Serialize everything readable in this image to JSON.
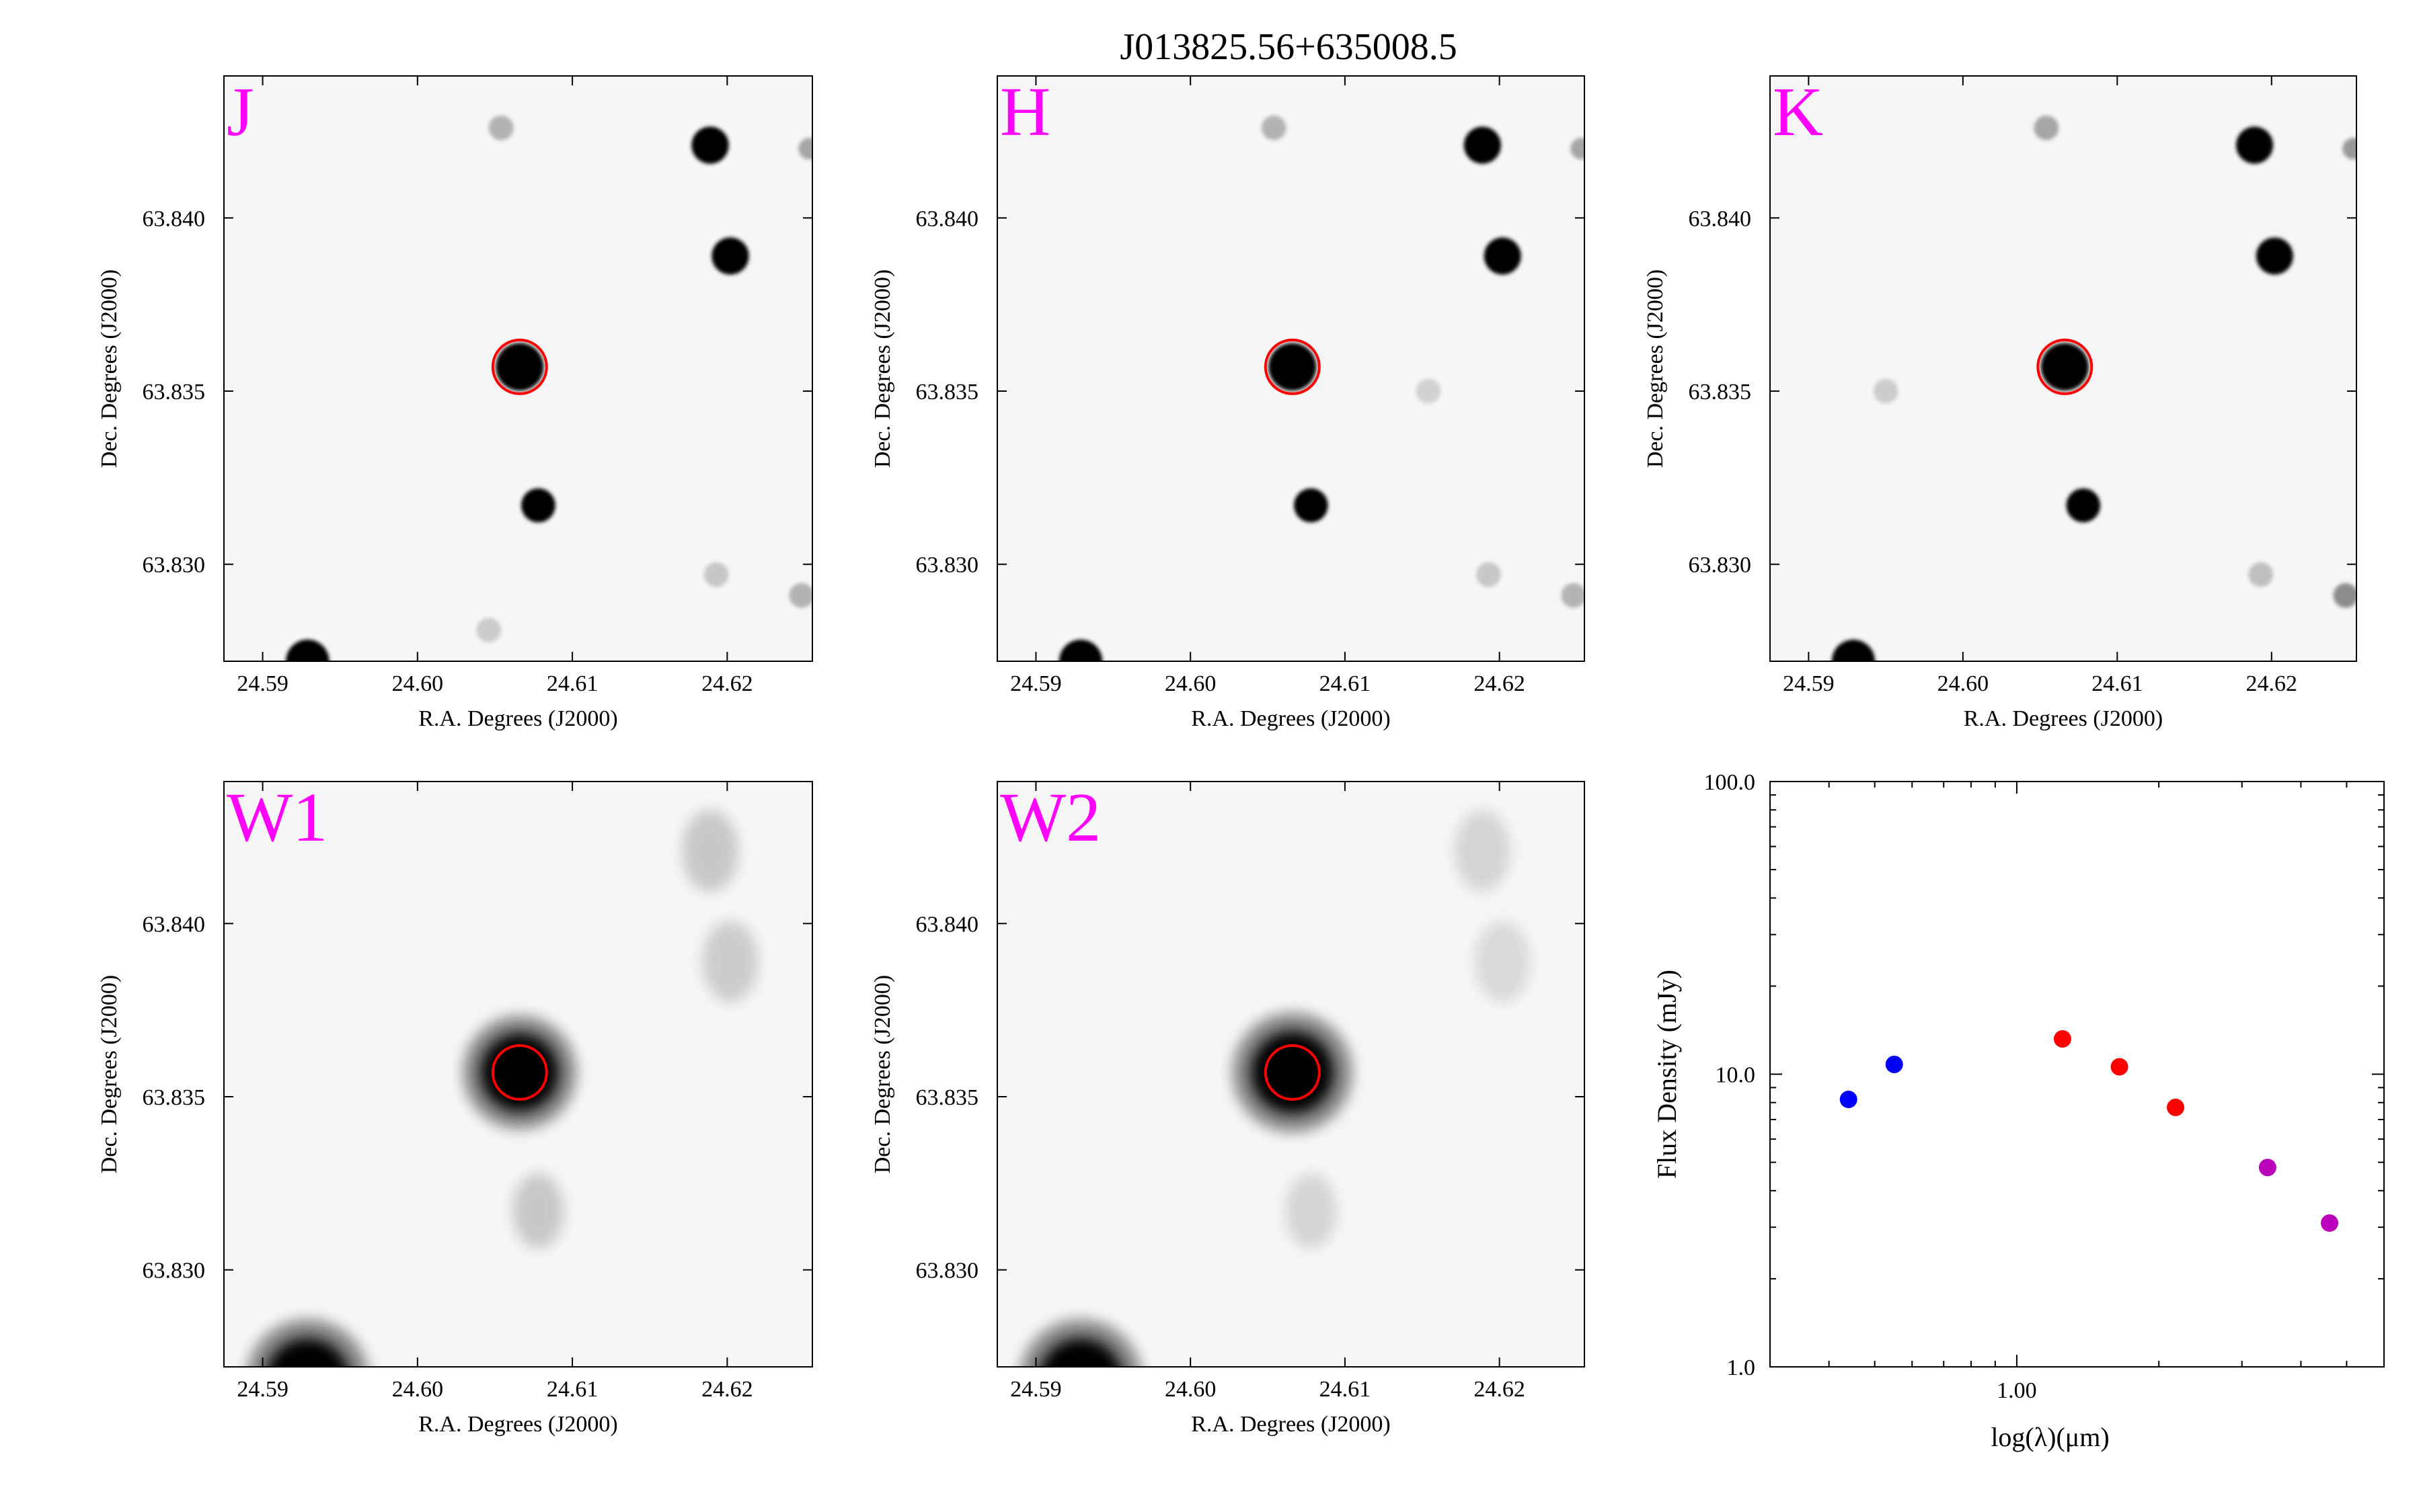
{
  "figure": {
    "title": "J013825.56+635008.5"
  },
  "chart_data": [
    {
      "type": "heatmap",
      "panel": "J",
      "label": "J",
      "xlabel": "R.A. Degrees (J2000)",
      "ylabel": "Dec. Degrees (J2000)",
      "xlim": [
        24.5875,
        24.6255
      ],
      "ylim": [
        63.8272,
        63.8441
      ],
      "xticks": [
        "24.59",
        "24.60",
        "24.61",
        "24.62"
      ],
      "yticks": [
        "63.830",
        "63.835",
        "63.840"
      ],
      "label_color": "#ff00ff",
      "target_marker": {
        "ra": 24.6066,
        "dec": 63.8357,
        "color": "#ff0000",
        "shape": "circle"
      },
      "sources": [
        {
          "ra": 24.6066,
          "dec": 63.8357,
          "r": 0.00155,
          "a": 1.0
        },
        {
          "ra": 24.6189,
          "dec": 63.8421,
          "r": 0.0012,
          "a": 1.0
        },
        {
          "ra": 24.6202,
          "dec": 63.8389,
          "r": 0.0012,
          "a": 1.0
        },
        {
          "ra": 24.6078,
          "dec": 63.8317,
          "r": 0.0011,
          "a": 1.0
        },
        {
          "ra": 24.5929,
          "dec": 63.8272,
          "r": 0.0014,
          "a": 1.0
        },
        {
          "ra": 24.6054,
          "dec": 63.8426,
          "r": 0.0008,
          "a": 0.3
        },
        {
          "ra": 24.6253,
          "dec": 63.842,
          "r": 0.0007,
          "a": 0.35
        },
        {
          "ra": 24.6193,
          "dec": 63.8297,
          "r": 0.0008,
          "a": 0.22
        },
        {
          "ra": 24.6248,
          "dec": 63.8291,
          "r": 0.0008,
          "a": 0.3
        },
        {
          "ra": 24.6046,
          "dec": 63.8281,
          "r": 0.0008,
          "a": 0.2
        }
      ]
    },
    {
      "type": "heatmap",
      "panel": "H",
      "label": "H",
      "xlabel": "R.A. Degrees (J2000)",
      "ylabel": "Dec. Degrees (J2000)",
      "xlim": [
        24.5875,
        24.6255
      ],
      "ylim": [
        63.8272,
        63.8441
      ],
      "xticks": [
        "24.59",
        "24.60",
        "24.61",
        "24.62"
      ],
      "yticks": [
        "63.830",
        "63.835",
        "63.840"
      ],
      "label_color": "#ff00ff",
      "target_marker": {
        "ra": 24.6066,
        "dec": 63.8357,
        "color": "#ff0000",
        "shape": "circle"
      },
      "sources": [
        {
          "ra": 24.6066,
          "dec": 63.8357,
          "r": 0.00155,
          "a": 1.0
        },
        {
          "ra": 24.6189,
          "dec": 63.8421,
          "r": 0.0012,
          "a": 1.0
        },
        {
          "ra": 24.6202,
          "dec": 63.8389,
          "r": 0.0012,
          "a": 1.0
        },
        {
          "ra": 24.6078,
          "dec": 63.8317,
          "r": 0.0011,
          "a": 1.0
        },
        {
          "ra": 24.5929,
          "dec": 63.8272,
          "r": 0.0014,
          "a": 1.0
        },
        {
          "ra": 24.6054,
          "dec": 63.8426,
          "r": 0.0008,
          "a": 0.3
        },
        {
          "ra": 24.6253,
          "dec": 63.842,
          "r": 0.0007,
          "a": 0.35
        },
        {
          "ra": 24.6193,
          "dec": 63.8297,
          "r": 0.0008,
          "a": 0.22
        },
        {
          "ra": 24.6248,
          "dec": 63.8291,
          "r": 0.0008,
          "a": 0.3
        },
        {
          "ra": 24.6154,
          "dec": 63.835,
          "r": 0.0008,
          "a": 0.18
        }
      ]
    },
    {
      "type": "heatmap",
      "panel": "K",
      "label": "K",
      "xlabel": "R.A. Degrees (J2000)",
      "ylabel": "Dec. Degrees (J2000)",
      "xlim": [
        24.5875,
        24.6255
      ],
      "ylim": [
        63.8272,
        63.8441
      ],
      "xticks": [
        "24.59",
        "24.60",
        "24.61",
        "24.62"
      ],
      "yticks": [
        "63.830",
        "63.835",
        "63.840"
      ],
      "label_color": "#ff00ff",
      "target_marker": {
        "ra": 24.6066,
        "dec": 63.8357,
        "color": "#ff0000",
        "shape": "circle"
      },
      "sources": [
        {
          "ra": 24.6066,
          "dec": 63.8357,
          "r": 0.00155,
          "a": 1.0
        },
        {
          "ra": 24.6189,
          "dec": 63.8421,
          "r": 0.0012,
          "a": 1.0
        },
        {
          "ra": 24.6202,
          "dec": 63.8389,
          "r": 0.0012,
          "a": 1.0
        },
        {
          "ra": 24.6078,
          "dec": 63.8317,
          "r": 0.0011,
          "a": 1.0
        },
        {
          "ra": 24.5929,
          "dec": 63.8272,
          "r": 0.0014,
          "a": 1.0
        },
        {
          "ra": 24.6054,
          "dec": 63.8426,
          "r": 0.0008,
          "a": 0.35
        },
        {
          "ra": 24.6253,
          "dec": 63.842,
          "r": 0.0007,
          "a": 0.4
        },
        {
          "ra": 24.6193,
          "dec": 63.8297,
          "r": 0.0008,
          "a": 0.25
        },
        {
          "ra": 24.6248,
          "dec": 63.8291,
          "r": 0.0008,
          "a": 0.45
        },
        {
          "ra": 24.595,
          "dec": 63.835,
          "r": 0.0008,
          "a": 0.2
        }
      ]
    },
    {
      "type": "heatmap",
      "panel": "W1",
      "label": "W1",
      "xlabel": "R.A. Degrees (J2000)",
      "ylabel": "Dec. Degrees (J2000)",
      "xlim": [
        24.5875,
        24.6255
      ],
      "ylim": [
        63.8272,
        63.8441
      ],
      "xticks": [
        "24.59",
        "24.60",
        "24.61",
        "24.62"
      ],
      "yticks": [
        "63.830",
        "63.835",
        "63.840"
      ],
      "label_color": "#ff00ff",
      "target_marker": {
        "ra": 24.6066,
        "dec": 63.8357,
        "color": "#ff0000",
        "shape": "circle"
      },
      "sources": [
        {
          "ra": 24.6066,
          "dec": 63.8357,
          "r": 0.0035,
          "a": 1.0
        },
        {
          "ra": 24.5929,
          "dec": 63.8268,
          "r": 0.0038,
          "a": 1.0
        },
        {
          "ra": 24.6189,
          "dec": 63.8421,
          "r": 0.0024,
          "a": 0.22
        },
        {
          "ra": 24.6202,
          "dec": 63.8389,
          "r": 0.0024,
          "a": 0.2
        },
        {
          "ra": 24.6078,
          "dec": 63.8317,
          "r": 0.0022,
          "a": 0.22
        }
      ]
    },
    {
      "type": "heatmap",
      "panel": "W2",
      "label": "W2",
      "xlabel": "R.A. Degrees (J2000)",
      "ylabel": "Dec. Degrees (J2000)",
      "xlim": [
        24.5875,
        24.6255
      ],
      "ylim": [
        63.8272,
        63.8441
      ],
      "xticks": [
        "24.59",
        "24.60",
        "24.61",
        "24.62"
      ],
      "yticks": [
        "63.830",
        "63.835",
        "63.840"
      ],
      "label_color": "#ff00ff",
      "target_marker": {
        "ra": 24.6066,
        "dec": 63.8357,
        "color": "#ff0000",
        "shape": "circle"
      },
      "sources": [
        {
          "ra": 24.6066,
          "dec": 63.8357,
          "r": 0.0037,
          "a": 1.0
        },
        {
          "ra": 24.5929,
          "dec": 63.8268,
          "r": 0.0038,
          "a": 1.0
        },
        {
          "ra": 24.6189,
          "dec": 63.8421,
          "r": 0.0024,
          "a": 0.17
        },
        {
          "ra": 24.6202,
          "dec": 63.8389,
          "r": 0.0024,
          "a": 0.15
        },
        {
          "ra": 24.6078,
          "dec": 63.8317,
          "r": 0.0022,
          "a": 0.17
        }
      ]
    },
    {
      "type": "scatter",
      "panel": "SED",
      "xlabel": "log(λ)(μm)",
      "ylabel": "Flux Density (mJy)",
      "xscale": "log",
      "yscale": "log",
      "xlim": [
        0.3,
        6.0
      ],
      "ylim": [
        1.0,
        100.0
      ],
      "xticks": [
        "1.00"
      ],
      "yticks": [
        "1.0",
        "10.0",
        "100.0"
      ],
      "points": [
        {
          "x": 0.44,
          "y": 8.2,
          "color": "#0000ff"
        },
        {
          "x": 0.55,
          "y": 10.8,
          "color": "#0000ff"
        },
        {
          "x": 1.25,
          "y": 13.2,
          "color": "#ff0000"
        },
        {
          "x": 1.65,
          "y": 10.6,
          "color": "#ff0000"
        },
        {
          "x": 2.17,
          "y": 7.7,
          "color": "#ff0000"
        },
        {
          "x": 3.4,
          "y": 4.8,
          "color": "#bb00bb"
        },
        {
          "x": 4.6,
          "y": 3.1,
          "color": "#bb00bb"
        }
      ]
    }
  ]
}
